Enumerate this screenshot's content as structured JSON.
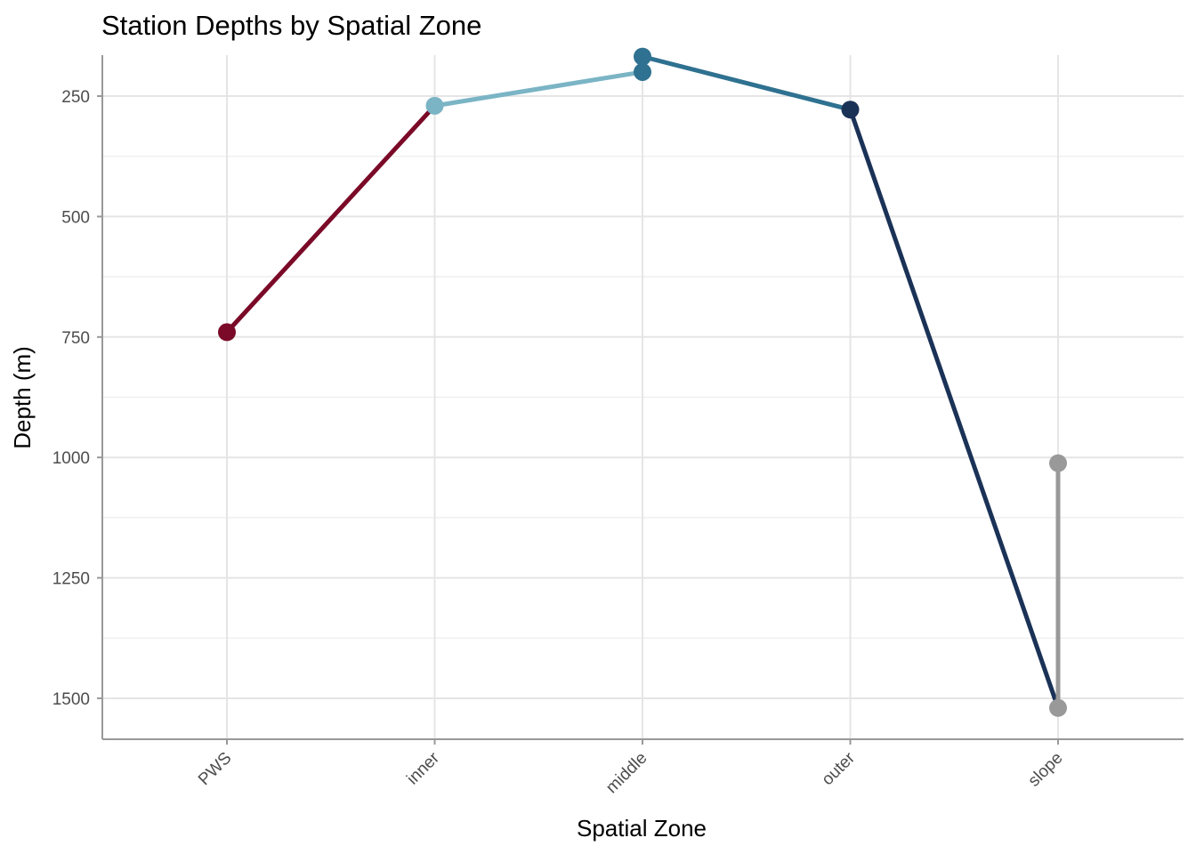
{
  "chart_data": {
    "type": "line",
    "title": "Station Depths by Spatial Zone",
    "xlabel": "Spatial Zone",
    "ylabel": "Depth (m)",
    "categories": [
      "PWS",
      "inner",
      "middle",
      "outer",
      "slope"
    ],
    "y_reversed": true,
    "ylim": [
      165,
      1585
    ],
    "yticks": [
      250,
      500,
      750,
      1000,
      1250,
      1500
    ],
    "grid": true,
    "legend": "none",
    "path": [
      {
        "x": "PWS",
        "y": 740,
        "color": "#7a0a27"
      },
      {
        "x": "inner",
        "y": 270,
        "color": "#7ab4c5"
      },
      {
        "x": "middle",
        "y": 200,
        "color": "#2f7190"
      },
      {
        "x": "middle",
        "y": 168,
        "color": "#2f7190"
      },
      {
        "x": "outer",
        "y": 278,
        "color": "#1b3257"
      },
      {
        "x": "slope",
        "y": 1520,
        "color": "#999999"
      },
      {
        "x": "slope",
        "y": 1012,
        "color": "#999999"
      }
    ]
  }
}
